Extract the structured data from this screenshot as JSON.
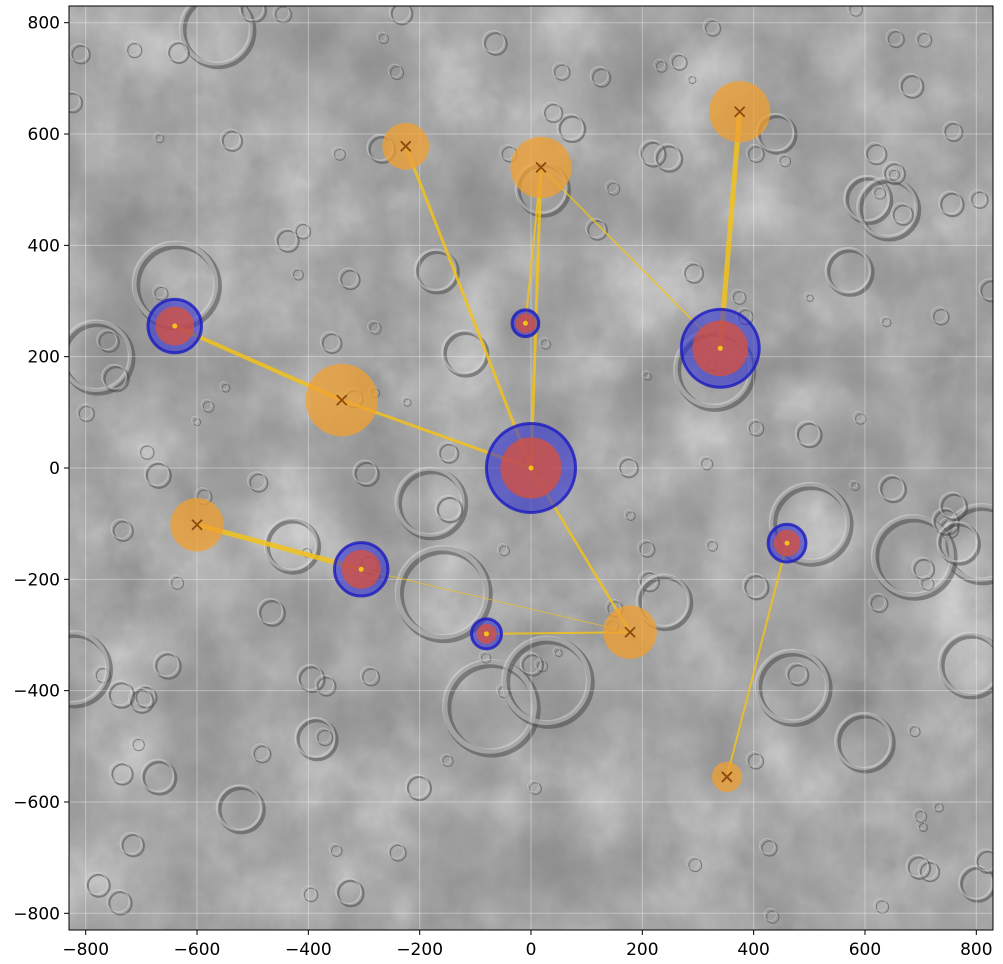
{
  "chart_data": {
    "type": "scatter",
    "title": "",
    "xlabel": "",
    "ylabel": "",
    "xlim": [
      -830,
      830
    ],
    "ylim": [
      -830,
      830
    ],
    "x_ticks": [
      -800,
      -600,
      -400,
      -200,
      0,
      200,
      400,
      600,
      800
    ],
    "y_ticks": [
      -800,
      -600,
      -400,
      -200,
      0,
      200,
      400,
      600,
      800
    ],
    "x_tick_labels": [
      "−800",
      "−600",
      "−400",
      "−200",
      "0",
      "200",
      "400",
      "600",
      "800"
    ],
    "y_tick_labels": [
      "−800",
      "−600",
      "−400",
      "−200",
      "0",
      "200",
      "400",
      "600",
      "800"
    ],
    "grid": true,
    "background": "grayscale cratered terrain image",
    "series": [
      {
        "marker": "circle",
        "points": [
          {
            "x": 0,
            "y": 0,
            "r": 80
          },
          {
            "x": 340,
            "y": 215,
            "r": 70
          },
          {
            "x": -640,
            "y": 255,
            "r": 48
          },
          {
            "x": -305,
            "y": -182,
            "r": 48
          },
          {
            "x": 460,
            "y": -135,
            "r": 34
          },
          {
            "x": -80,
            "y": -298,
            "r": 27
          },
          {
            "x": -10,
            "y": 260,
            "r": 24
          }
        ]
      },
      {
        "marker": "circle",
        "points": [
          {
            "x": 0,
            "y": 0,
            "r": 55
          },
          {
            "x": 340,
            "y": 215,
            "r": 50
          },
          {
            "x": -640,
            "y": 255,
            "r": 35
          },
          {
            "x": -305,
            "y": -182,
            "r": 35
          },
          {
            "x": 460,
            "y": -135,
            "r": 24
          },
          {
            "x": -80,
            "y": -298,
            "r": 18
          },
          {
            "x": -10,
            "y": 260,
            "r": 18
          }
        ]
      },
      {
        "marker": "circle-x",
        "points": [
          {
            "x": 375,
            "y": 640,
            "r": 55
          },
          {
            "x": 18,
            "y": 540,
            "r": 55
          },
          {
            "x": -225,
            "y": 578,
            "r": 42
          },
          {
            "x": -340,
            "y": 122,
            "r": 65
          },
          {
            "x": -600,
            "y": -102,
            "r": 48
          },
          {
            "x": 178,
            "y": -295,
            "r": 48
          },
          {
            "x": 352,
            "y": -555,
            "r": 27
          }
        ]
      }
    ],
    "links": [
      {
        "from": [
          0,
          0
        ],
        "to": [
          -340,
          122
        ],
        "width": 3
      },
      {
        "from": [
          -340,
          122
        ],
        "to": [
          -640,
          255
        ],
        "width": 4
      },
      {
        "from": [
          0,
          0
        ],
        "to": [
          -225,
          578
        ],
        "width": 3
      },
      {
        "from": [
          0,
          0
        ],
        "to": [
          18,
          540
        ],
        "width": 3
      },
      {
        "from": [
          -10,
          260
        ],
        "to": [
          18,
          540
        ],
        "width": 2
      },
      {
        "from": [
          0,
          0
        ],
        "to": [
          178,
          -295
        ],
        "width": 2.5
      },
      {
        "from": [
          340,
          215
        ],
        "to": [
          375,
          640
        ],
        "width": 5
      },
      {
        "from": [
          340,
          215
        ],
        "to": [
          18,
          540
        ],
        "width": 1.5
      },
      {
        "from": [
          -305,
          -182
        ],
        "to": [
          -600,
          -102
        ],
        "width": 5
      },
      {
        "from": [
          -305,
          -182
        ],
        "to": [
          178,
          -295
        ],
        "width": 0.8
      },
      {
        "from": [
          -80,
          -298
        ],
        "to": [
          178,
          -295
        ],
        "width": 2
      },
      {
        "from": [
          460,
          -135
        ],
        "to": [
          352,
          -555
        ],
        "width": 2
      }
    ],
    "colors": {
      "blue_fill": "#2a2ad8",
      "red_fill": "#d9503a",
      "orange_fill": "#f0a030",
      "link": "#f2c21a",
      "cross": "#8a4a10"
    }
  }
}
